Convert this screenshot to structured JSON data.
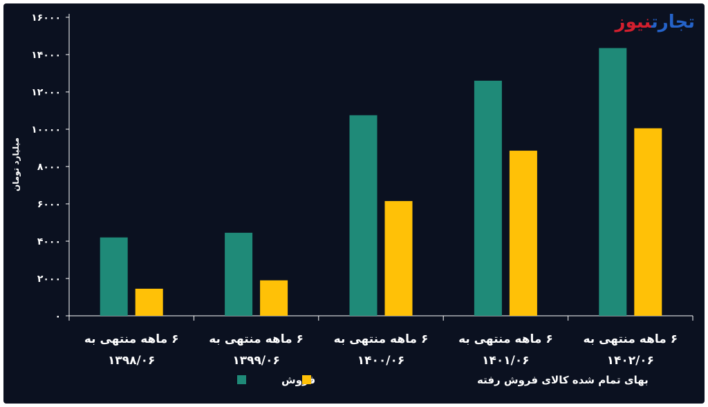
{
  "logo": {
    "part1": "تجارت",
    "part2": "نیوز"
  },
  "colors": {
    "background": "#0b1120",
    "axis": "#ffffff",
    "sales": "#1f8a78",
    "cost": "#ffc107",
    "logo_primary": "#2563c9",
    "logo_accent": "#d21f2e"
  },
  "chart_data": {
    "type": "bar",
    "ylabel": "میلیارد تومان",
    "ylim": [
      0,
      16000
    ],
    "yticks": [
      0,
      2000,
      4000,
      6000,
      8000,
      10000,
      12000,
      14000,
      16000
    ],
    "ytick_labels": [
      "۰",
      "۲۰۰۰",
      "۴۰۰۰",
      "۶۰۰۰",
      "۸۰۰۰",
      "۱۰۰۰۰",
      "۱۲۰۰۰",
      "۱۴۰۰۰",
      "۱۶۰۰۰"
    ],
    "categories": [
      {
        "line1": "۶ ماهه منتهی به",
        "line2": "۱۳۹۸/۰۶"
      },
      {
        "line1": "۶ ماهه منتهی به",
        "line2": "۱۳۹۹/۰۶"
      },
      {
        "line1": "۶ ماهه منتهی به",
        "line2": "۱۴۰۰/۰۶"
      },
      {
        "line1": "۶ ماهه منتهی به",
        "line2": "۱۴۰۱/۰۶"
      },
      {
        "line1": "۶ ماهه منتهی به",
        "line2": "۱۴۰۲/۰۶"
      }
    ],
    "series": [
      {
        "name": "فروش",
        "color": "#1f8a78",
        "values": [
          4200,
          4450,
          10750,
          12600,
          14350
        ]
      },
      {
        "name": "بهای تمام شده کالای فروش رفته",
        "color": "#ffc107",
        "values": [
          1450,
          1900,
          6150,
          8850,
          10050
        ]
      }
    ],
    "legend_position": "bottom"
  }
}
